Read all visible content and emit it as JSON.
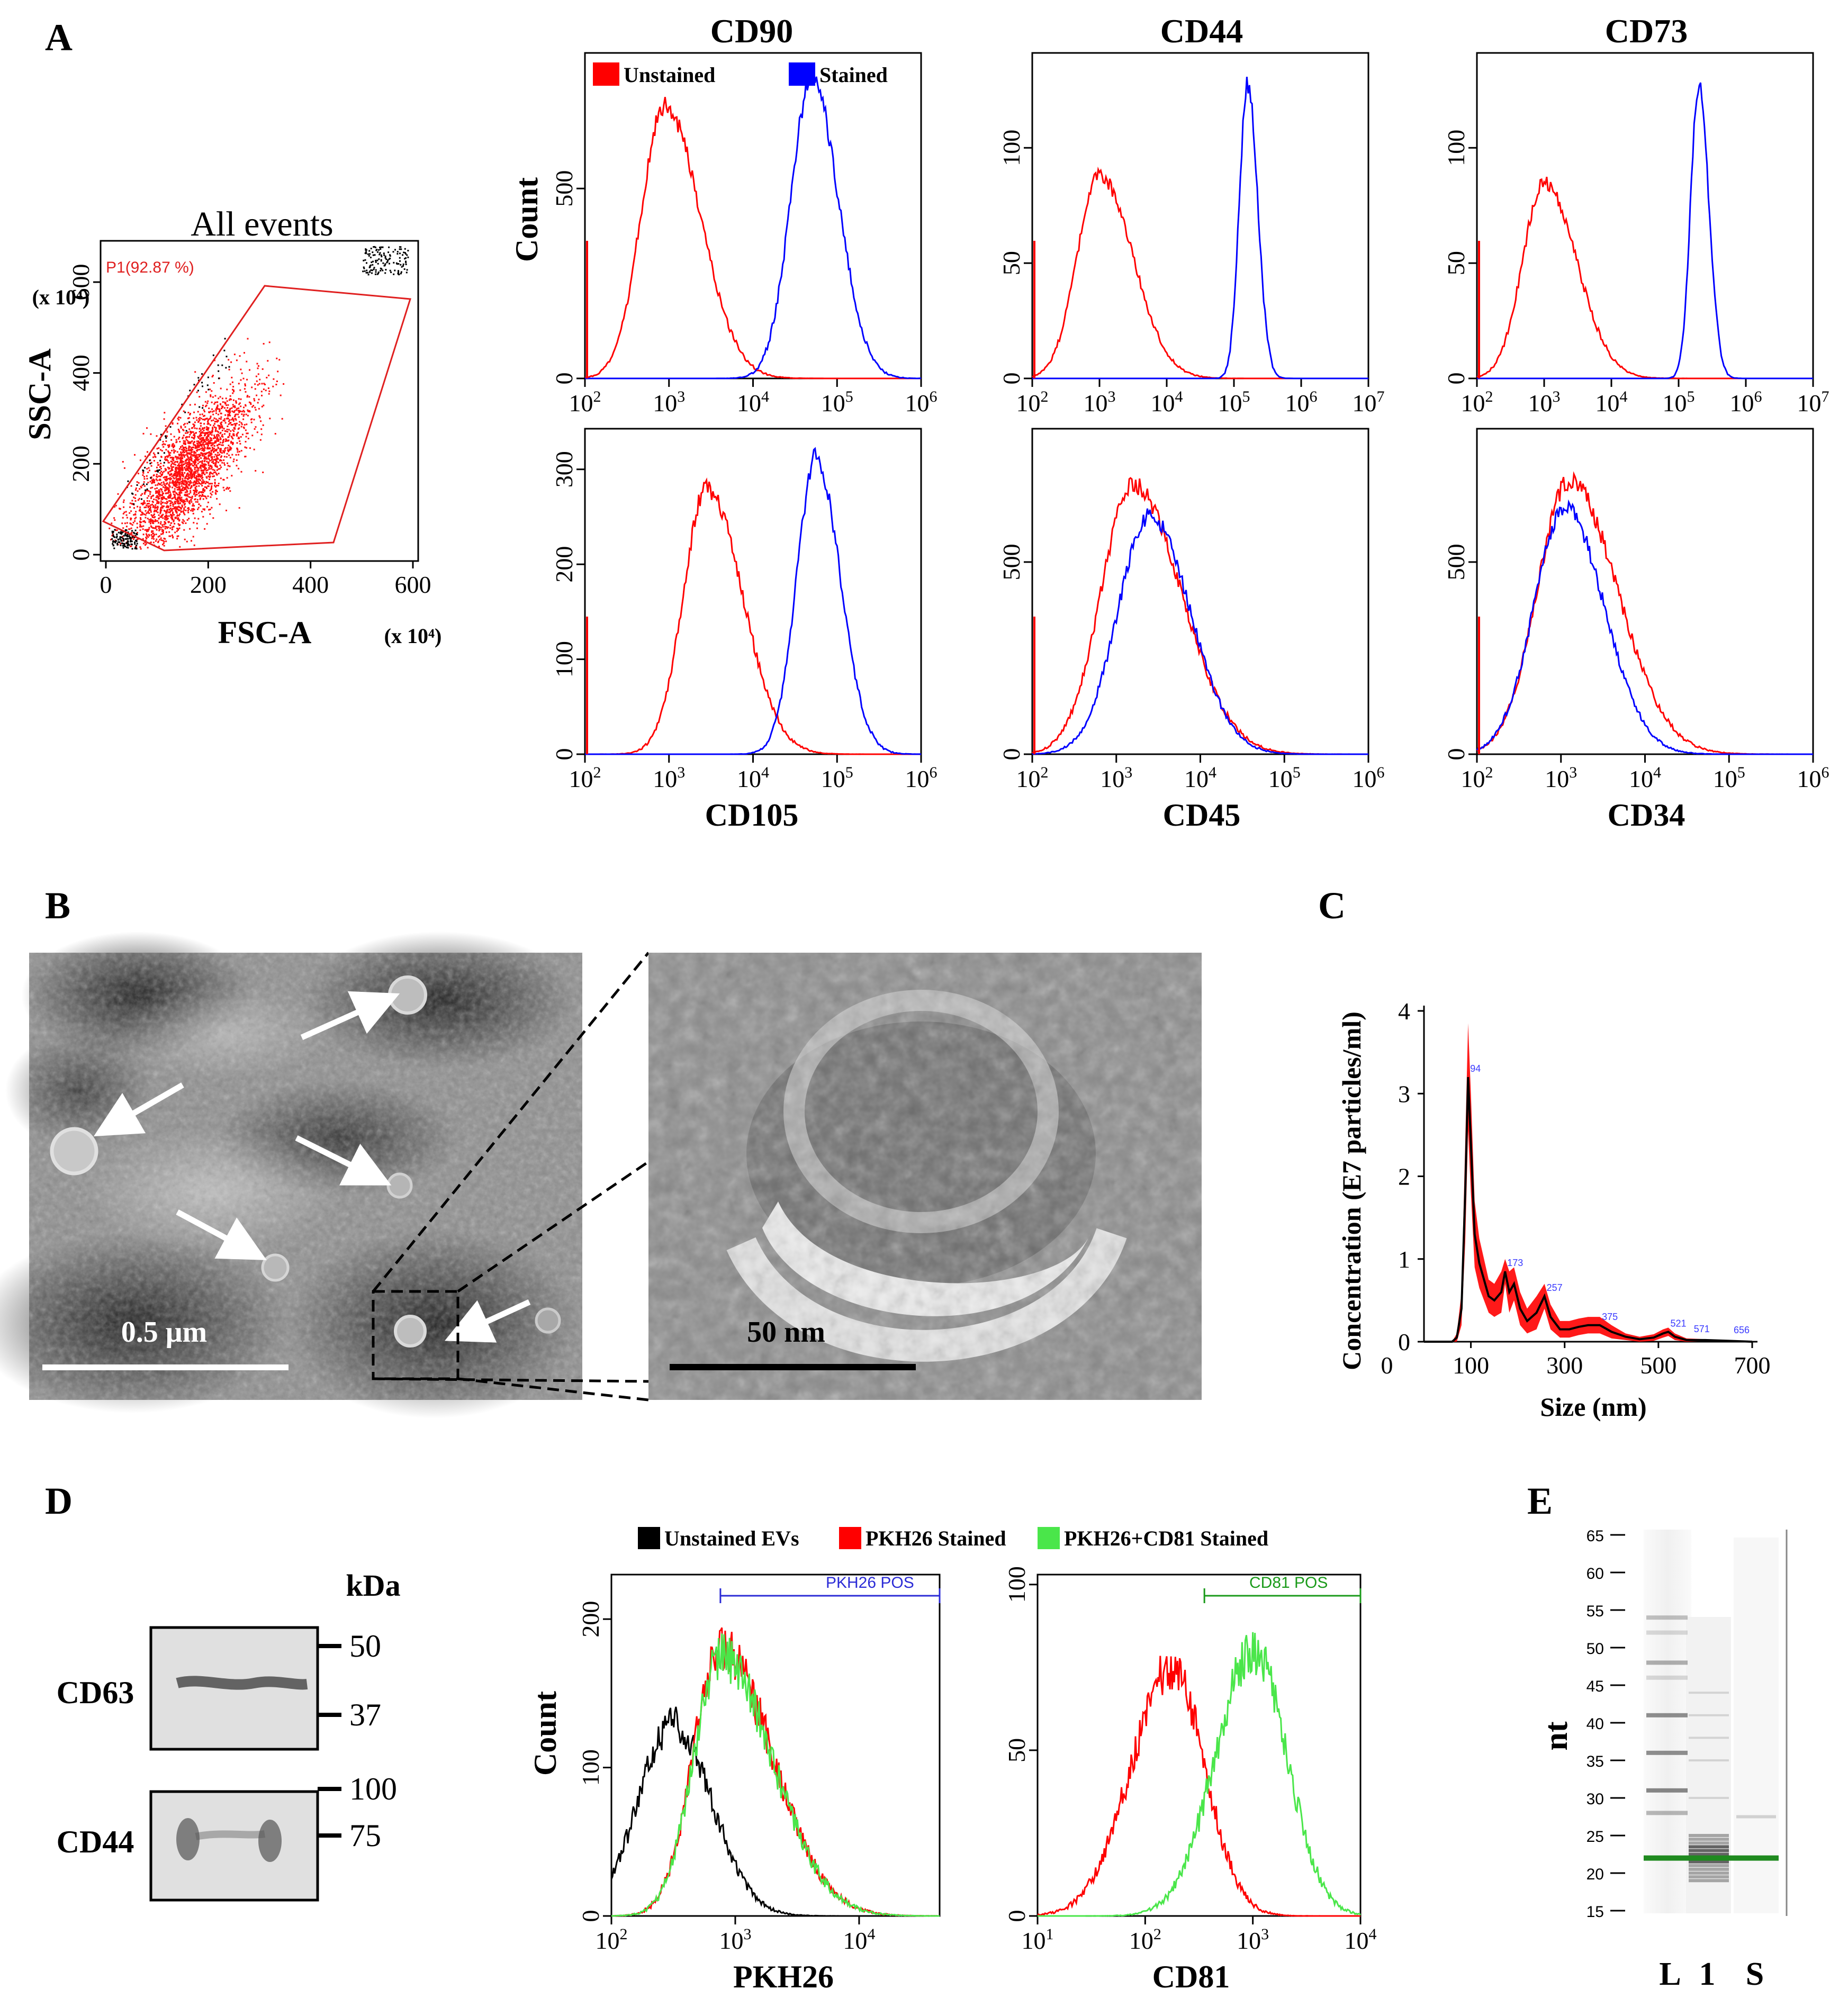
{
  "panels": {
    "A": "A",
    "B": "B",
    "C": "C",
    "D": "D",
    "E": "E"
  },
  "panel_a": {
    "scatter": {
      "title": "All events",
      "gate_label": "P1(92.87 %)",
      "xlabel": "FSC-A",
      "ylabel": "SSC-A",
      "x_unit": "(x 10⁴)",
      "y_unit": "(x 10⁴)",
      "xticks": [
        "0",
        "200",
        "400",
        "600"
      ],
      "yticks": [
        "0",
        "200",
        "400",
        "600"
      ]
    },
    "legend": {
      "unstained": "Unstained",
      "stained": "Stained"
    },
    "count_label": "Count",
    "colors": {
      "unstained": "#ff0000",
      "stained": "#0000ff"
    },
    "x_exponents": [
      "2",
      "3",
      "4",
      "5",
      "6",
      "7"
    ],
    "histograms": [
      {
        "name": "CD90",
        "title": "CD90",
        "xlabel": "",
        "yticks": [
          "0",
          "500"
        ],
        "ymax": 850,
        "xmax_exp": 6,
        "unstained_peak": [
          2.95,
          720,
          0.28
        ],
        "stained_peak": [
          4.7,
          790,
          0.25
        ]
      },
      {
        "name": "CD44",
        "title": "CD44",
        "xlabel": "",
        "yticks": [
          "0",
          "50",
          "100"
        ],
        "ymax": 140,
        "xmax_exp": 7,
        "unstained_peak": [
          3.0,
          88,
          0.33
        ],
        "stained_peak": [
          5.2,
          128,
          0.12
        ]
      },
      {
        "name": "CD73",
        "title": "CD73",
        "xlabel": "",
        "yticks": [
          "0",
          "50",
          "100"
        ],
        "ymax": 140,
        "xmax_exp": 7,
        "unstained_peak": [
          3.0,
          85,
          0.32
        ],
        "stained_peak": [
          5.3,
          128,
          0.12
        ]
      },
      {
        "name": "CD105",
        "title": "",
        "xlabel": "CD105",
        "yticks": [
          "0",
          "100",
          "200",
          "300"
        ],
        "ymax": 340,
        "xmax_exp": 6,
        "unstained_peak": [
          3.45,
          280,
          0.28
        ],
        "stained_peak": [
          4.75,
          312,
          0.23
        ]
      },
      {
        "name": "CD45",
        "title": "",
        "xlabel": "CD45",
        "yticks": [
          "0",
          "500"
        ],
        "ymax": 840,
        "xmax_exp": 6,
        "unstained_peak": [
          3.2,
          700,
          0.38
        ],
        "stained_peak": [
          3.4,
          620,
          0.38
        ]
      },
      {
        "name": "CD34",
        "title": "",
        "xlabel": "CD34",
        "yticks": [
          "0",
          "500"
        ],
        "ymax": 840,
        "xmax_exp": 6,
        "unstained_peak": [
          3.1,
          710,
          0.38
        ],
        "stained_peak": [
          3.05,
          640,
          0.37
        ]
      }
    ]
  },
  "panel_b": {
    "scale_large": "0.5 μm",
    "scale_zoom": "50 nm"
  },
  "panel_c": {
    "chart_data": {
      "type": "line",
      "xlabel": "Size (nm)",
      "ylabel": "Concentration (E7 particles/ml)",
      "xlim": [
        0,
        700
      ],
      "ylim": [
        0,
        4
      ],
      "xticks": [
        "0",
        "100",
        "300",
        "500",
        "700"
      ],
      "yticks": [
        "0",
        "1",
        "2",
        "3",
        "4"
      ],
      "peaks": [
        {
          "x": 94,
          "y": 3.2,
          "label": "94"
        },
        {
          "x": 173,
          "y": 0.85,
          "label": "173"
        },
        {
          "x": 257,
          "y": 0.55,
          "label": "257"
        },
        {
          "x": 375,
          "y": 0.2,
          "label": "375"
        },
        {
          "x": 521,
          "y": 0.12,
          "label": "521"
        },
        {
          "x": 571,
          "y": 0.05,
          "label": "571"
        },
        {
          "x": 656,
          "y": 0.04,
          "label": "656"
        }
      ],
      "series": [
        {
          "name": "mean",
          "color": "#000000",
          "x": [
            0,
            60,
            70,
            80,
            88,
            94,
            100,
            108,
            118,
            128,
            138,
            150,
            165,
            173,
            182,
            192,
            205,
            220,
            240,
            257,
            270,
            290,
            310,
            330,
            350,
            375,
            400,
            430,
            460,
            490,
            510,
            521,
            535,
            560,
            600,
            650,
            700
          ],
          "y": [
            0,
            0.0,
            0.05,
            0.4,
            1.8,
            3.2,
            2.4,
            1.3,
            0.95,
            0.75,
            0.55,
            0.5,
            0.6,
            0.85,
            0.6,
            0.7,
            0.4,
            0.25,
            0.35,
            0.55,
            0.3,
            0.15,
            0.15,
            0.18,
            0.2,
            0.2,
            0.12,
            0.06,
            0.03,
            0.05,
            0.1,
            0.12,
            0.06,
            0.02,
            0.02,
            0.01,
            0.0
          ]
        },
        {
          "name": "error-band",
          "color": "#ff0000",
          "upper": [
            0,
            0.0,
            0.1,
            0.6,
            2.4,
            3.85,
            3.0,
            1.7,
            1.25,
            1.0,
            0.75,
            0.7,
            0.85,
            1.0,
            0.85,
            0.9,
            0.6,
            0.4,
            0.55,
            0.7,
            0.45,
            0.25,
            0.25,
            0.28,
            0.3,
            0.3,
            0.2,
            0.1,
            0.06,
            0.09,
            0.15,
            0.17,
            0.1,
            0.04,
            0.03,
            0.02,
            0.0
          ]
        }
      ]
    }
  },
  "panel_d": {
    "wb_kda": "kDa",
    "bands": [
      {
        "label": "CD63",
        "marker_top": "50",
        "marker_bot": "37"
      },
      {
        "label": "CD44",
        "marker_top": "100",
        "marker_bot": "75"
      }
    ],
    "legend": {
      "unstained": "Unstained EVs",
      "pkh26": "PKH26 Stained",
      "pkh26_cd81": "PKH26+CD81 Stained"
    },
    "colors": {
      "unstained": "#000000",
      "pkh26": "#ff0000",
      "pkh26_cd81": "#4ae64a"
    },
    "count_label": "Count",
    "pkh26": {
      "xlabel": "PKH26",
      "gate": "PKH26 POS",
      "gate_color": "#2b2bd6",
      "yticks": [
        "0",
        "100",
        "200"
      ],
      "xticks_exp": [
        "2",
        "3",
        "4"
      ]
    },
    "cd81": {
      "xlabel": "CD81",
      "gate": "CD81 POS",
      "gate_color": "#1a9a1a",
      "yticks": [
        "0",
        "50",
        "100"
      ],
      "xticks_exp": [
        "1",
        "2",
        "3",
        "4"
      ]
    }
  },
  "panel_e": {
    "ylabel": "nt",
    "yticks": [
      "15",
      "20",
      "25",
      "30",
      "35",
      "40",
      "45",
      "50",
      "55",
      "60",
      "65"
    ],
    "lanes": [
      "L",
      "1",
      "S"
    ],
    "marker_color": "#1f8a1f"
  }
}
